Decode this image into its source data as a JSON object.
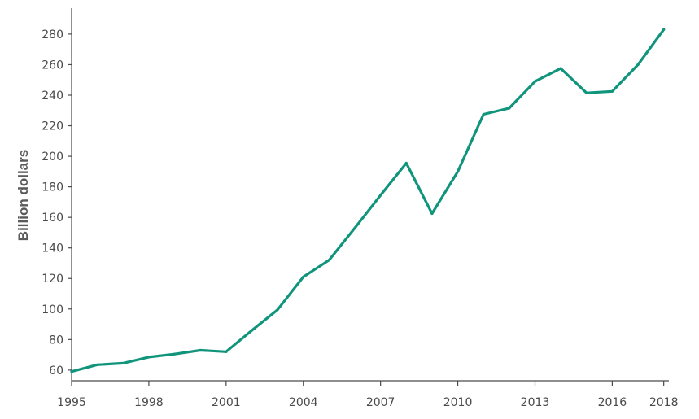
{
  "chart_data": {
    "type": "line",
    "title": "",
    "xlabel": "",
    "ylabel": "Billion dollars",
    "xlim": [
      1995,
      2018.2
    ],
    "ylim": [
      53,
      297
    ],
    "x_ticks": [
      1995,
      1998,
      2001,
      2004,
      2007,
      2010,
      2013,
      2016,
      2018
    ],
    "y_ticks": [
      60,
      80,
      100,
      120,
      140,
      160,
      180,
      200,
      220,
      240,
      260,
      280
    ],
    "grid": false,
    "legend": "none",
    "series": [
      {
        "color": "#10947c",
        "x": [
          1995,
          1996,
          1997,
          1998,
          1999,
          2000,
          2001,
          2002,
          2003,
          2004,
          2005,
          2006,
          2007,
          2008,
          2009,
          2010,
          2011,
          2012,
          2013,
          2014,
          2015,
          2016,
          2017,
          2018
        ],
        "y": [
          59,
          63.5,
          64.5,
          68.5,
          70.5,
          73,
          72,
          86,
          99.5,
          121,
          132,
          153,
          174.5,
          195.5,
          162.5,
          190,
          227.5,
          231.5,
          249,
          257.5,
          241.5,
          242.5,
          260,
          283
        ]
      }
    ]
  }
}
